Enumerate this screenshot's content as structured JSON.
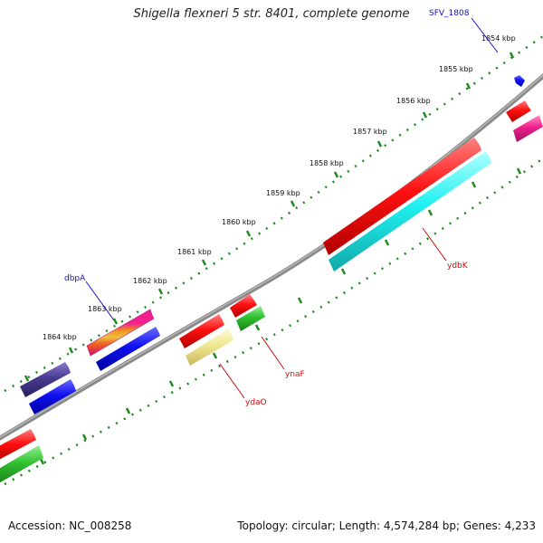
{
  "title": "Shigella flexneri 5 str. 8401, complete genome",
  "footer": {
    "accession": "Accession: NC_008258",
    "summary": "Topology: circular; Length: 4,574,284 bp; Genes: 4,233"
  },
  "colors": {
    "backbone": "#8a8a8a",
    "tick": "#1d8a1d",
    "label_forward": "#1010cc",
    "label_reverse": "#cc1010",
    "red": "#ff1010",
    "blue": "#1010f0",
    "cyan": "#20f0f0",
    "green": "#30c030",
    "magenta": "#f0208c",
    "yellow": "#f0e890",
    "purple": "#4a3a90",
    "orange": "#f08020"
  },
  "ticks": [
    {
      "label": "1854 kbp"
    },
    {
      "label": "1855 kbp"
    },
    {
      "label": "1856 kbp"
    },
    {
      "label": "1857 kbp"
    },
    {
      "label": "1858 kbp"
    },
    {
      "label": "1859 kbp"
    },
    {
      "label": "1860 kbp"
    },
    {
      "label": "1861 kbp"
    },
    {
      "label": "1862 kbp"
    },
    {
      "label": "1863 kbp"
    },
    {
      "label": "1864 kbp"
    }
  ],
  "gene_labels": [
    {
      "id": "sfv_1808",
      "text": "SFV_1808",
      "strand": "forward"
    },
    {
      "id": "dbpa",
      "text": "dbpA",
      "strand": "forward"
    },
    {
      "id": "ydbk",
      "text": "ydbK",
      "strand": "reverse"
    },
    {
      "id": "ynaf",
      "text": "ynaF",
      "strand": "reverse"
    },
    {
      "id": "ydao",
      "text": "ydaO",
      "strand": "reverse"
    }
  ]
}
